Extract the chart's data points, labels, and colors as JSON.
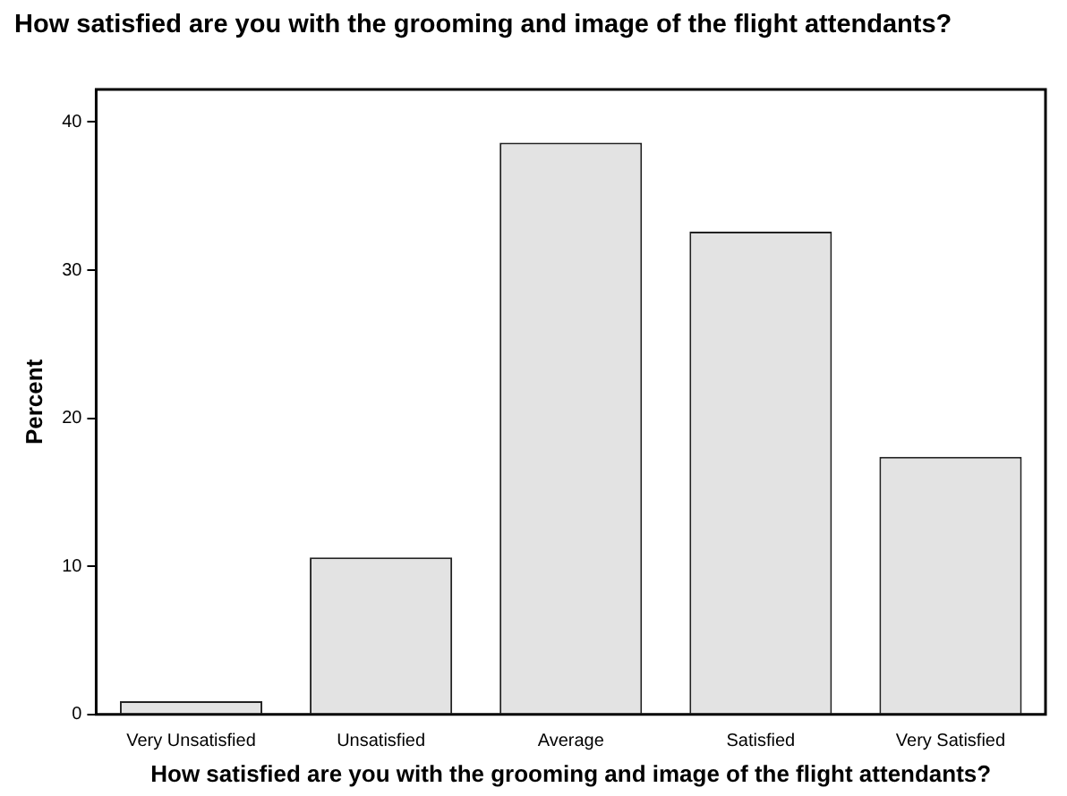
{
  "chart_data": {
    "type": "bar",
    "title": "How satisfied are you with the grooming and image of the flight attendants?",
    "xlabel": "How satisfied are you with the grooming and image of the flight attendants?",
    "ylabel": "Percent",
    "categories": [
      "Very Unsatisfied",
      "Unsatisfied",
      "Average",
      "Satisfied",
      "Very Satisfied"
    ],
    "values": [
      0.9,
      10.6,
      38.6,
      32.6,
      17.4
    ],
    "color": "#e3e3e3",
    "ylim": [
      0,
      42.2
    ],
    "yticks": [
      0,
      10,
      20,
      30,
      40
    ],
    "grid": false,
    "legend": false
  }
}
